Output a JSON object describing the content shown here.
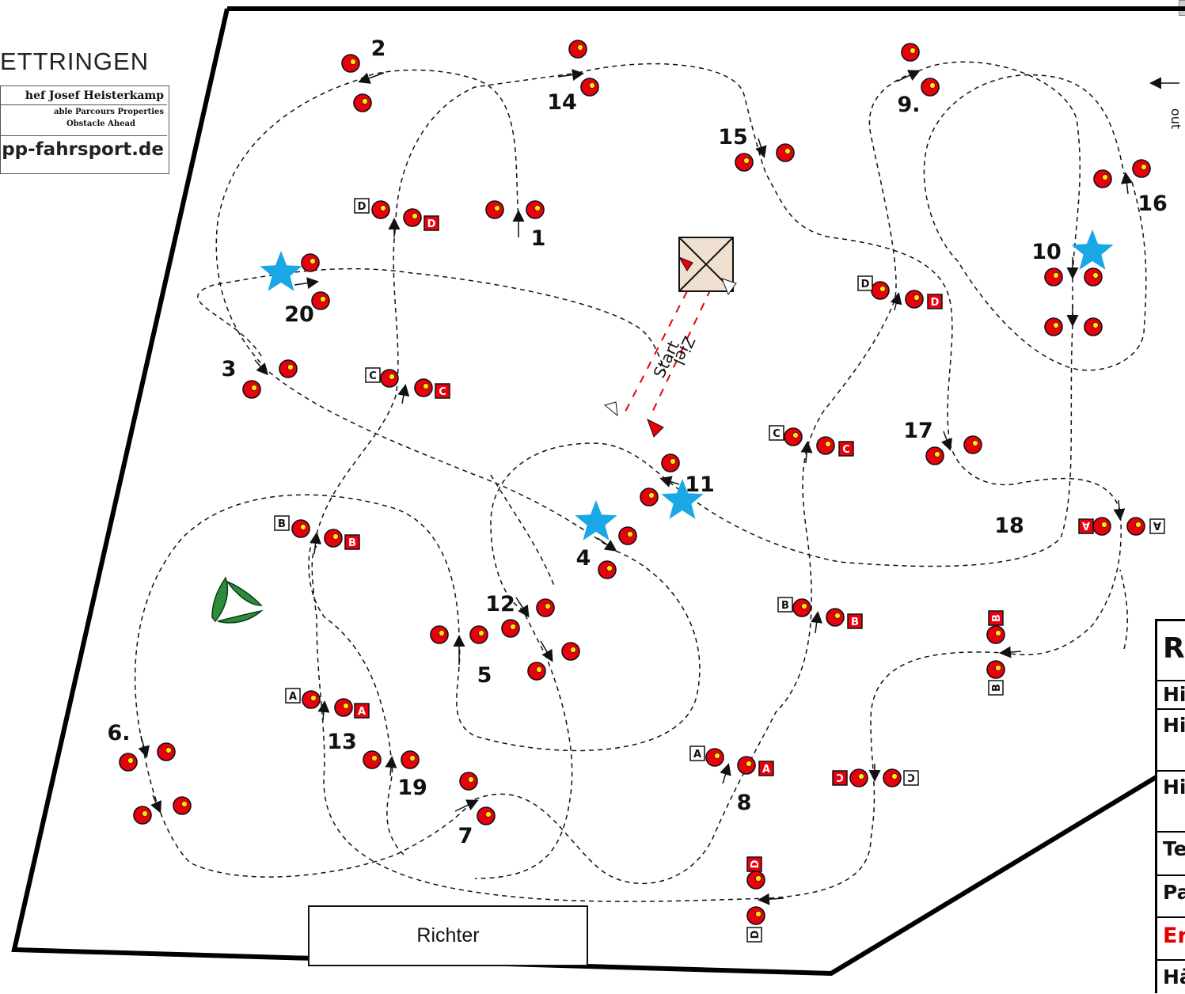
{
  "brand": {
    "town": "ETTRINGEN",
    "line1": "hef Josef Heisterkamp",
    "line2": "able Parcours Properties",
    "line3": "Obstacle Ahead",
    "website": "pp-fahrsport.de"
  },
  "course": {
    "start_label": "Start",
    "finish_label": "Ziel",
    "out_label": "out",
    "numbers": [
      "1",
      "2",
      "3",
      "4",
      "5",
      "6.",
      "7",
      "8",
      "9.",
      "10",
      "11",
      "12",
      "13",
      "14",
      "15",
      "16",
      "17",
      "18",
      "19",
      "20"
    ],
    "gate_letters": [
      "A",
      "B",
      "C",
      "D"
    ],
    "colors": {
      "cone": "#e8000d",
      "ball": "#ffe600",
      "star": "#1aa7e6",
      "bush": "#2e8b3e",
      "path": "#111111"
    }
  },
  "judge_box": {
    "label": "Richter"
  },
  "results_table": {
    "header": "R",
    "rows": [
      "Hi",
      "Hi",
      "Hi",
      "Te",
      "Pa",
      "Er",
      "Hä"
    ],
    "highlight_color": "#e00000"
  },
  "icons": [
    "cone-icon",
    "star-icon",
    "flag-icon",
    "arrow-icon",
    "bush-obstacle-icon",
    "tent-icon"
  ]
}
